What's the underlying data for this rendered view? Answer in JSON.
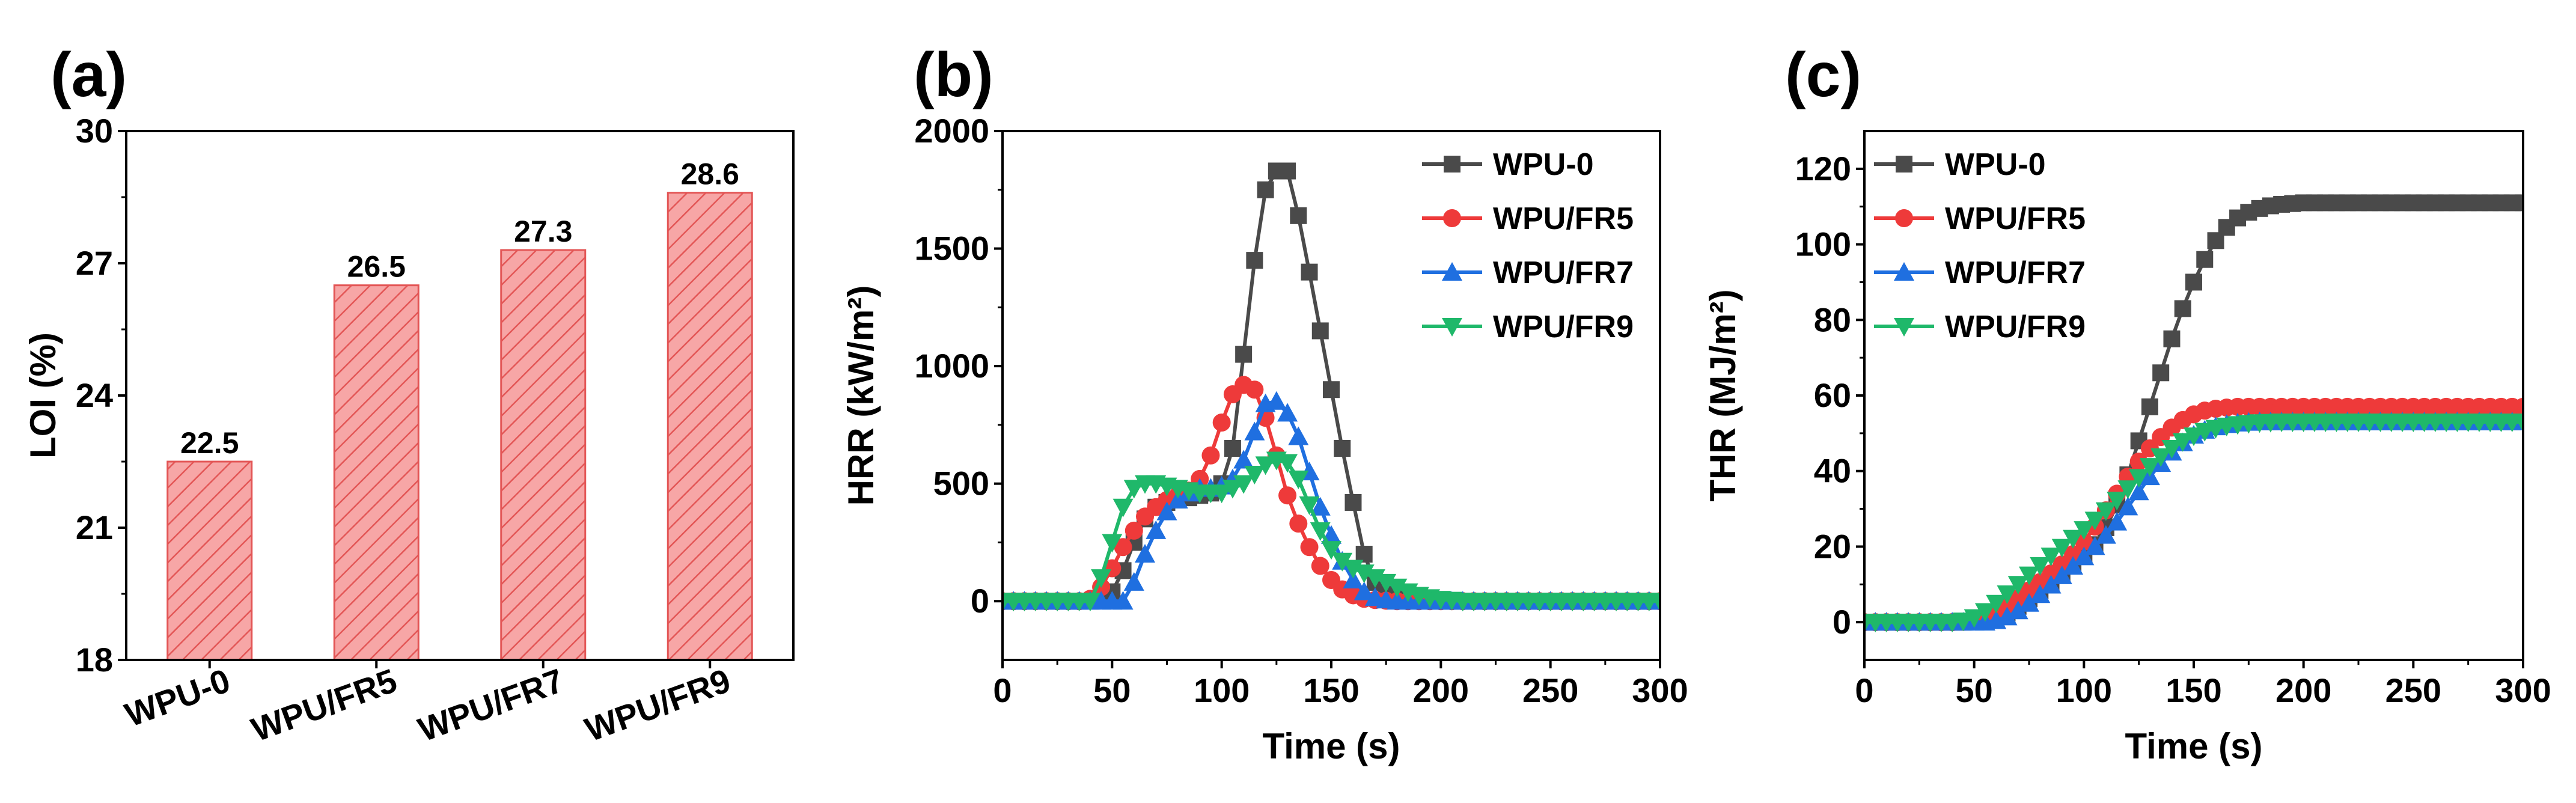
{
  "palette": {
    "wpu0": "#4a4a4a",
    "fr5": "#ee3a3a",
    "fr7": "#1f6fe0",
    "fr9": "#1fb86a",
    "bar_fill": "#f7a6a6",
    "bar_hatch": "#e35656"
  },
  "chart_data": [
    {
      "panel": "(a)",
      "type": "bar",
      "title": "",
      "xlabel": "",
      "ylabel": "LOI (%)",
      "ylim": [
        18,
        30
      ],
      "yticks": [
        18,
        21,
        24,
        27,
        30
      ],
      "categories": [
        "WPU-0",
        "WPU/FR5",
        "WPU/FR7",
        "WPU/FR9"
      ],
      "values": [
        22.5,
        26.5,
        27.3,
        28.6
      ],
      "data_labels": [
        "22.5",
        "26.5",
        "27.3",
        "28.6"
      ]
    },
    {
      "panel": "(b)",
      "type": "line",
      "title": "",
      "xlabel": "Time (s)",
      "ylabel": "HRR (kW/m²)",
      "xlim": [
        0,
        300
      ],
      "ylim": [
        -250,
        2000
      ],
      "xticks": [
        0,
        50,
        100,
        150,
        200,
        250,
        300
      ],
      "yticks": [
        0,
        500,
        1000,
        1500,
        2000
      ],
      "legend_position": "top-right",
      "series": [
        {
          "name": "WPU-0",
          "marker": "square",
          "color_key": "wpu0",
          "x": [
            0,
            5,
            10,
            15,
            20,
            25,
            30,
            35,
            40,
            45,
            50,
            55,
            60,
            65,
            70,
            75,
            80,
            85,
            90,
            95,
            100,
            105,
            110,
            115,
            120,
            125,
            130,
            135,
            140,
            145,
            150,
            155,
            160,
            165,
            170,
            175,
            180,
            185,
            190,
            195,
            200,
            205,
            210,
            215,
            220,
            225,
            230,
            235,
            240,
            245,
            250,
            255,
            260,
            265,
            270,
            275,
            280,
            285,
            290,
            295,
            300
          ],
          "y": [
            0,
            0,
            0,
            0,
            0,
            0,
            0,
            0,
            0,
            10,
            40,
            130,
            250,
            350,
            400,
            420,
            430,
            440,
            450,
            460,
            500,
            650,
            1050,
            1450,
            1750,
            1830,
            1830,
            1640,
            1400,
            1150,
            900,
            650,
            420,
            200,
            80,
            40,
            20,
            10,
            5,
            2,
            0,
            0,
            0,
            0,
            0,
            0,
            0,
            0,
            0,
            0,
            0,
            0,
            0,
            0,
            0,
            0,
            0,
            0,
            0,
            0,
            0
          ]
        },
        {
          "name": "WPU/FR5",
          "marker": "circle",
          "color_key": "fr5",
          "x": [
            0,
            5,
            10,
            15,
            20,
            25,
            30,
            35,
            40,
            45,
            50,
            55,
            60,
            65,
            70,
            75,
            80,
            85,
            90,
            95,
            100,
            105,
            110,
            115,
            120,
            125,
            130,
            135,
            140,
            145,
            150,
            155,
            160,
            165,
            170,
            175,
            180,
            185,
            190,
            195,
            200,
            205,
            210,
            215,
            220,
            225,
            230,
            235,
            240,
            245,
            250,
            255,
            260,
            265,
            270,
            275,
            280,
            285,
            290,
            295,
            300
          ],
          "y": [
            0,
            0,
            0,
            0,
            0,
            0,
            0,
            0,
            10,
            60,
            140,
            230,
            300,
            360,
            400,
            430,
            450,
            470,
            520,
            620,
            760,
            880,
            920,
            900,
            780,
            620,
            450,
            330,
            230,
            150,
            90,
            50,
            25,
            10,
            5,
            2,
            0,
            0,
            0,
            0,
            0,
            0,
            0,
            0,
            0,
            0,
            0,
            0,
            0,
            0,
            0,
            0,
            0,
            0,
            0,
            0,
            0,
            0,
            0,
            0,
            0
          ]
        },
        {
          "name": "WPU/FR7",
          "marker": "triangle-up",
          "color_key": "fr7",
          "x": [
            0,
            5,
            10,
            15,
            20,
            25,
            30,
            35,
            40,
            45,
            50,
            55,
            60,
            65,
            70,
            75,
            80,
            85,
            90,
            95,
            100,
            105,
            110,
            115,
            120,
            125,
            130,
            135,
            140,
            145,
            150,
            155,
            160,
            165,
            170,
            175,
            180,
            185,
            190,
            195,
            200,
            205,
            210,
            215,
            220,
            225,
            230,
            235,
            240,
            245,
            250,
            255,
            260,
            265,
            270,
            275,
            280,
            285,
            290,
            295,
            300
          ],
          "y": [
            0,
            0,
            0,
            0,
            0,
            0,
            0,
            0,
            0,
            0,
            0,
            0,
            80,
            200,
            300,
            380,
            430,
            460,
            480,
            480,
            490,
            520,
            600,
            720,
            840,
            850,
            800,
            700,
            550,
            400,
            280,
            170,
            90,
            40,
            15,
            5,
            0,
            0,
            0,
            0,
            0,
            0,
            0,
            0,
            0,
            0,
            0,
            0,
            0,
            0,
            0,
            0,
            0,
            0,
            0,
            0,
            0,
            0,
            0,
            0,
            0
          ]
        },
        {
          "name": "WPU/FR9",
          "marker": "triangle-down",
          "color_key": "fr9",
          "x": [
            0,
            5,
            10,
            15,
            20,
            25,
            30,
            35,
            40,
            45,
            50,
            55,
            60,
            65,
            70,
            75,
            80,
            85,
            90,
            95,
            100,
            105,
            110,
            115,
            120,
            125,
            130,
            135,
            140,
            145,
            150,
            155,
            160,
            165,
            170,
            175,
            180,
            185,
            190,
            195,
            200,
            205,
            210,
            215,
            220,
            225,
            230,
            235,
            240,
            245,
            250,
            255,
            260,
            265,
            270,
            275,
            280,
            285,
            290,
            295,
            300
          ],
          "y": [
            0,
            0,
            0,
            0,
            0,
            0,
            0,
            0,
            0,
            100,
            250,
            400,
            480,
            500,
            500,
            490,
            480,
            470,
            460,
            460,
            460,
            480,
            500,
            540,
            580,
            600,
            590,
            520,
            410,
            300,
            220,
            170,
            140,
            120,
            100,
            80,
            60,
            40,
            25,
            15,
            8,
            4,
            0,
            0,
            0,
            0,
            0,
            0,
            0,
            0,
            0,
            0,
            0,
            0,
            0,
            0,
            0,
            0,
            0,
            0,
            0
          ]
        }
      ]
    },
    {
      "panel": "(c)",
      "type": "line",
      "title": "",
      "xlabel": "Time (s)",
      "ylabel": "THR (MJ/m²)",
      "xlim": [
        0,
        300
      ],
      "ylim": [
        -10,
        130
      ],
      "xticks": [
        0,
        50,
        100,
        150,
        200,
        250,
        300
      ],
      "yticks": [
        0,
        20,
        40,
        60,
        80,
        100,
        120
      ],
      "legend_position": "top-left",
      "series": [
        {
          "name": "WPU-0",
          "marker": "square",
          "color_key": "wpu0",
          "x": [
            0,
            5,
            10,
            15,
            20,
            25,
            30,
            35,
            40,
            45,
            50,
            55,
            60,
            65,
            70,
            75,
            80,
            85,
            90,
            95,
            100,
            105,
            110,
            115,
            120,
            125,
            130,
            135,
            140,
            145,
            150,
            155,
            160,
            165,
            170,
            175,
            180,
            185,
            190,
            195,
            200,
            205,
            210,
            215,
            220,
            225,
            230,
            235,
            240,
            245,
            250,
            255,
            260,
            265,
            270,
            275,
            280,
            285,
            290,
            295,
            300
          ],
          "y": [
            0,
            0,
            0,
            0,
            0,
            0,
            0,
            0,
            0,
            0,
            0.1,
            0.5,
            1.2,
            2.4,
            4.2,
            6.2,
            8.3,
            10.5,
            12.7,
            15,
            17.5,
            20.5,
            25,
            31,
            39,
            48,
            57,
            66,
            75,
            83,
            90,
            96,
            101,
            104.5,
            107,
            108.5,
            109.5,
            110.2,
            110.6,
            110.8,
            111,
            111,
            111,
            111,
            111,
            111,
            111,
            111,
            111,
            111,
            111,
            111,
            111,
            111,
            111,
            111,
            111,
            111,
            111,
            111,
            111
          ]
        },
        {
          "name": "WPU/FR5",
          "marker": "circle",
          "color_key": "fr5",
          "x": [
            0,
            5,
            10,
            15,
            20,
            25,
            30,
            35,
            40,
            45,
            50,
            55,
            60,
            65,
            70,
            75,
            80,
            85,
            90,
            95,
            100,
            105,
            110,
            115,
            120,
            125,
            130,
            135,
            140,
            145,
            150,
            155,
            160,
            165,
            170,
            175,
            180,
            185,
            190,
            195,
            200,
            205,
            210,
            215,
            220,
            225,
            230,
            235,
            240,
            245,
            250,
            255,
            260,
            265,
            270,
            275,
            280,
            285,
            290,
            295,
            300
          ],
          "y": [
            0,
            0,
            0,
            0,
            0,
            0,
            0,
            0,
            0,
            0.1,
            0.5,
            1.3,
            2.6,
            4.3,
            6.3,
            8.4,
            10.6,
            12.9,
            15.3,
            18,
            21.3,
            25.3,
            29.6,
            34,
            38.5,
            42.5,
            46,
            49,
            51.5,
            53.5,
            55,
            56,
            56.5,
            56.8,
            57,
            57,
            57,
            57,
            57,
            57,
            57,
            57,
            57,
            57,
            57,
            57,
            57,
            57,
            57,
            57,
            57,
            57,
            57,
            57,
            57,
            57,
            57,
            57,
            57,
            57,
            57
          ]
        },
        {
          "name": "WPU/FR7",
          "marker": "triangle-up",
          "color_key": "fr7",
          "x": [
            0,
            5,
            10,
            15,
            20,
            25,
            30,
            35,
            40,
            45,
            50,
            55,
            60,
            65,
            70,
            75,
            80,
            85,
            90,
            95,
            100,
            105,
            110,
            115,
            120,
            125,
            130,
            135,
            140,
            145,
            150,
            155,
            160,
            165,
            170,
            175,
            180,
            185,
            190,
            195,
            200,
            205,
            210,
            215,
            220,
            225,
            230,
            235,
            240,
            245,
            250,
            255,
            260,
            265,
            270,
            275,
            280,
            285,
            290,
            295,
            300
          ],
          "y": [
            0,
            0,
            0,
            0,
            0,
            0,
            0,
            0,
            0,
            0,
            0,
            0,
            0.4,
            1.4,
            3,
            5,
            7.3,
            9.8,
            12.3,
            14.8,
            17.3,
            20,
            23,
            26.5,
            30.5,
            34.5,
            38.5,
            42,
            45,
            47.5,
            49.5,
            50.8,
            51.7,
            52.3,
            52.7,
            52.9,
            53,
            53,
            53,
            53,
            53,
            53,
            53,
            53,
            53,
            53,
            53,
            53,
            53,
            53,
            53,
            53,
            53,
            53,
            53,
            53,
            53,
            53,
            53,
            53,
            53
          ]
        },
        {
          "name": "WPU/FR9",
          "marker": "triangle-down",
          "color_key": "fr9",
          "x": [
            0,
            5,
            10,
            15,
            20,
            25,
            30,
            35,
            40,
            45,
            50,
            55,
            60,
            65,
            70,
            75,
            80,
            85,
            90,
            95,
            100,
            105,
            110,
            115,
            120,
            125,
            130,
            135,
            140,
            145,
            150,
            155,
            160,
            165,
            170,
            175,
            180,
            185,
            190,
            195,
            200,
            205,
            210,
            215,
            220,
            225,
            230,
            235,
            240,
            245,
            250,
            255,
            260,
            265,
            270,
            275,
            280,
            285,
            290,
            295,
            300
          ],
          "y": [
            0,
            0,
            0,
            0,
            0,
            0,
            0,
            0,
            0,
            0.3,
            1.2,
            2.8,
            5,
            7.5,
            10,
            12.5,
            15,
            17.5,
            19.8,
            22.2,
            24.5,
            27,
            29.5,
            32.3,
            35.3,
            38.3,
            41.2,
            43.8,
            46,
            47.8,
            49.3,
            50.5,
            51.3,
            51.9,
            52.3,
            52.6,
            52.8,
            52.9,
            53,
            53,
            53,
            53,
            53,
            53,
            53,
            53,
            53,
            53,
            53,
            53,
            53,
            53,
            53,
            53,
            53,
            53,
            53,
            53,
            53,
            53,
            53
          ]
        }
      ]
    }
  ]
}
